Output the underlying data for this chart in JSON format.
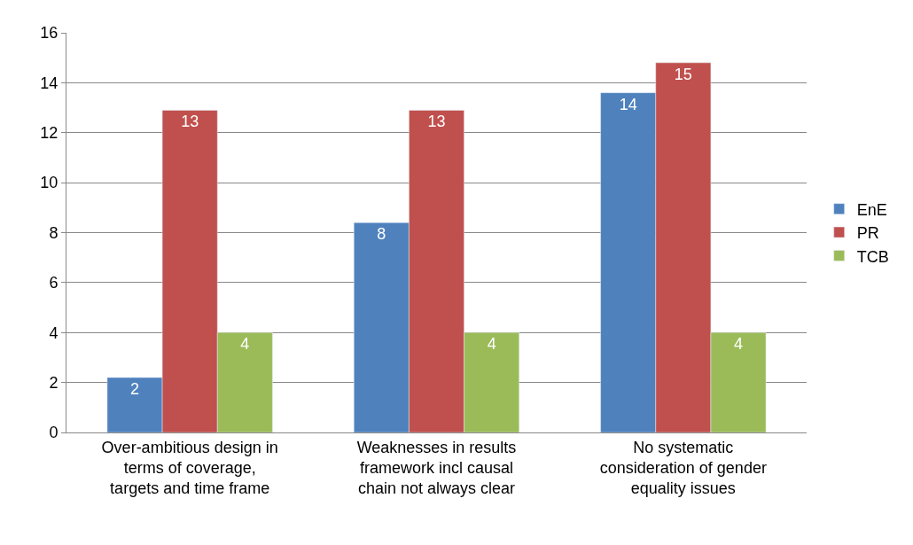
{
  "chart_data": {
    "type": "bar",
    "categories": [
      "Over-ambitious design in terms of coverage, targets and time frame",
      "Weaknesses in results framework incl causal chain not always clear",
      "No systematic consideration of gender equality issues"
    ],
    "series": [
      {
        "name": "EnE",
        "color": "#4f81bd",
        "values": [
          2.2,
          8.4,
          13.6
        ],
        "value_labels": [
          "2",
          "8",
          "14"
        ]
      },
      {
        "name": "PR",
        "color": "#c0504d",
        "values": [
          12.9,
          12.9,
          14.8
        ],
        "value_labels": [
          "13",
          "13",
          "15"
        ]
      },
      {
        "name": "TCB",
        "color": "#9bbb59",
        "values": [
          4,
          4,
          4
        ],
        "value_labels": [
          "4",
          "4",
          "4"
        ]
      }
    ],
    "ylim": [
      0,
      16
    ],
    "yticks": [
      0,
      2,
      4,
      6,
      8,
      10,
      12,
      14,
      16
    ],
    "grid": "y",
    "legend": "right"
  }
}
